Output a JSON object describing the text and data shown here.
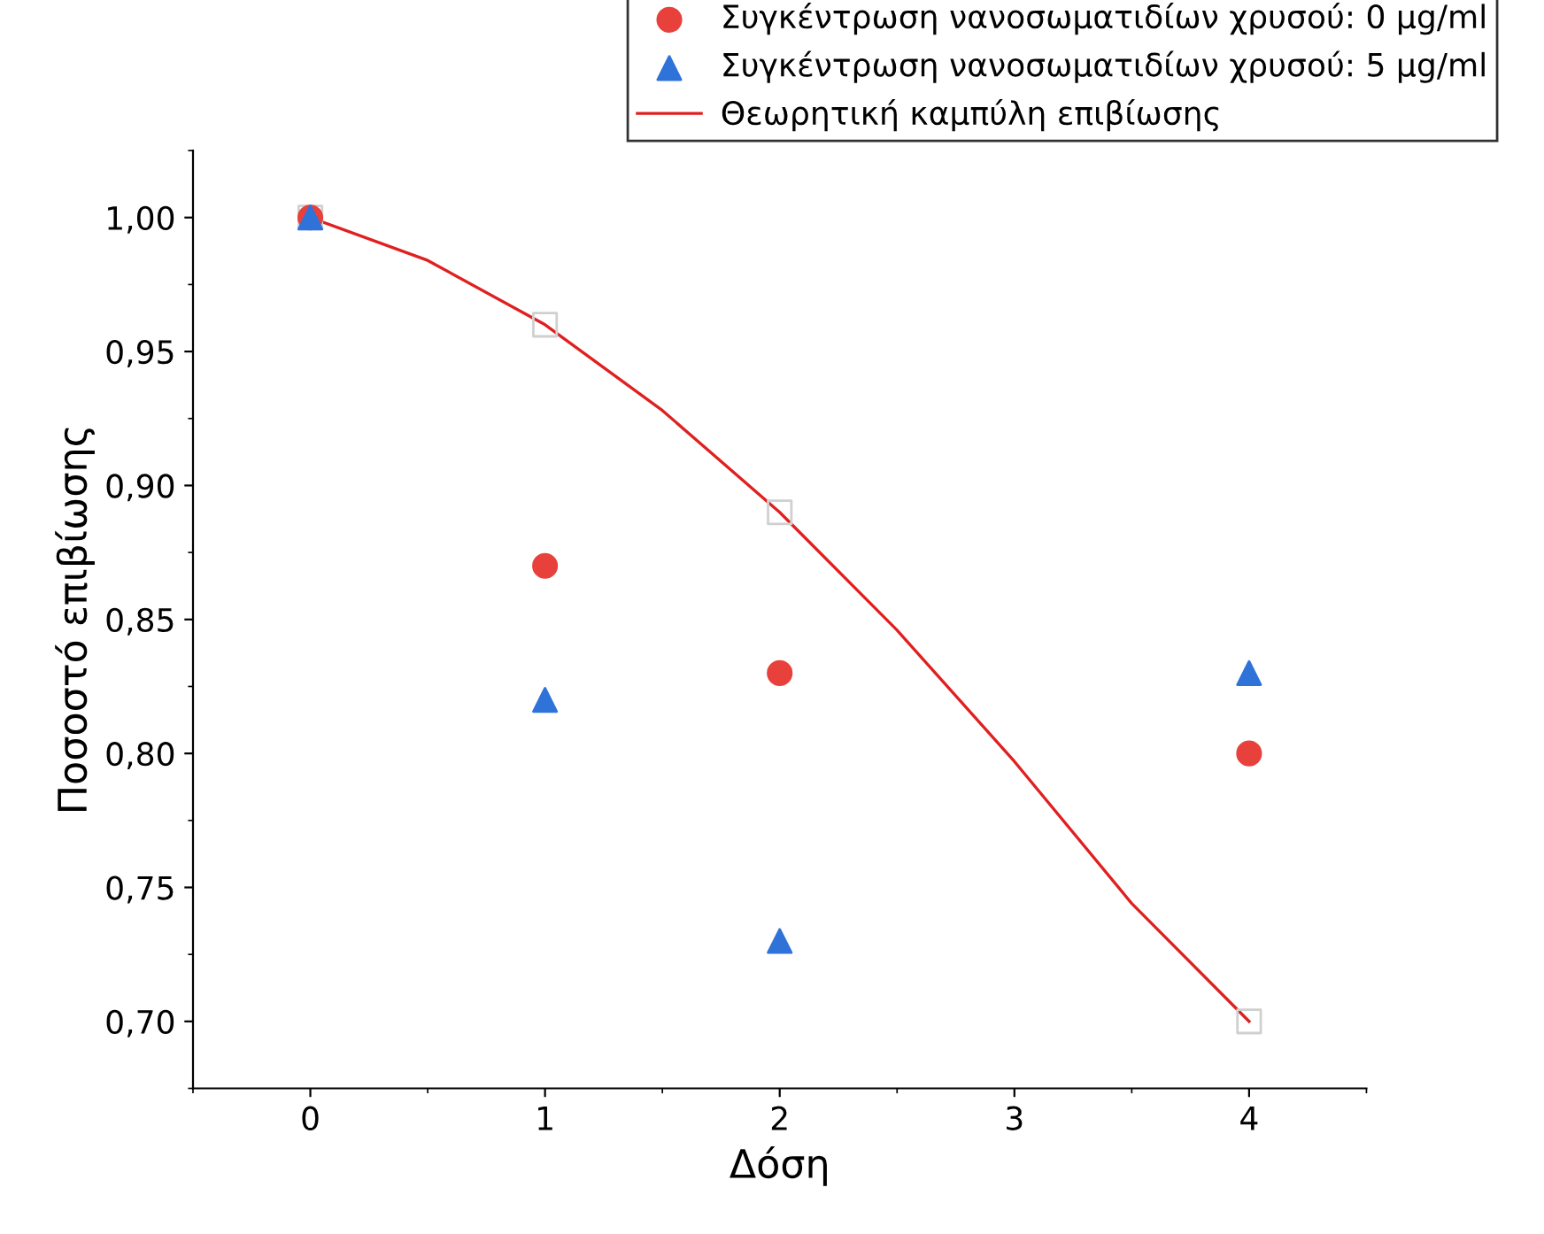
{
  "chart_data": {
    "type": "scatter",
    "xlabel": "Δόση",
    "ylabel": "Ποσοστό επιβίωσης",
    "xlim": [
      -0.5,
      4.5
    ],
    "xticks": [
      0,
      1,
      2,
      3,
      4
    ],
    "ylim": [
      0.675,
      1.025
    ],
    "yticks": [
      {
        "value": 0.7,
        "label": "0,70"
      },
      {
        "value": 0.75,
        "label": "0,75"
      },
      {
        "value": 0.8,
        "label": "0,80"
      },
      {
        "value": 0.85,
        "label": "0,85"
      },
      {
        "value": 0.9,
        "label": "0,90"
      },
      {
        "value": 0.95,
        "label": "0,95"
      },
      {
        "value": 1.0,
        "label": "1,00"
      }
    ],
    "grid": false,
    "legend": "top right",
    "series": [
      {
        "name": "Συγκέντρωση νανοσωματιδίων χρυσού: 0 μg/ml",
        "marker": "circle",
        "color": "#e8413c",
        "x": [
          0,
          1,
          2,
          4
        ],
        "values": [
          1.0,
          0.87,
          0.83,
          0.8
        ]
      },
      {
        "name": "Συγκέντρωση νανοσωματιδίων χρυσού: 5 μg/ml",
        "marker": "triangle",
        "color": "#2f73d9",
        "x": [
          0,
          1,
          2,
          4
        ],
        "values": [
          1.0,
          0.82,
          0.73,
          0.83
        ]
      },
      {
        "name": "Θεωρητική καμπύλη επιβίωσης",
        "type": "line",
        "marker": "none",
        "color": "#e02020",
        "x": [
          0,
          0.5,
          1,
          1.5,
          2,
          2.5,
          3,
          3.5,
          4
        ],
        "values": [
          1.0,
          0.984,
          0.96,
          0.928,
          0.89,
          0.846,
          0.797,
          0.744,
          0.7
        ]
      },
      {
        "marker": "square",
        "color": "#d0d0d0",
        "x": [
          0,
          1,
          2,
          4
        ],
        "values": [
          1.0,
          0.96,
          0.89,
          0.7
        ]
      }
    ]
  }
}
